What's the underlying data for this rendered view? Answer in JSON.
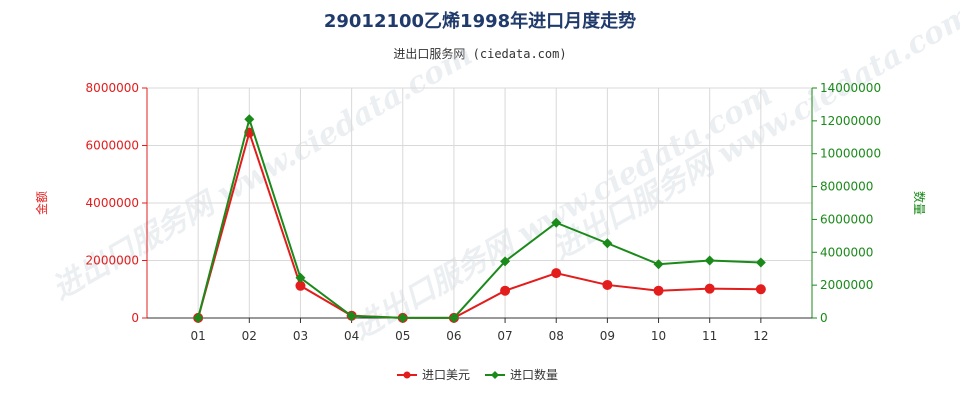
{
  "chart_data": {
    "type": "line",
    "title": "29012100乙烯1998年进口月度走势",
    "subtitle": "进出口服务网 (ciedata.com)",
    "categories": [
      "01",
      "02",
      "03",
      "04",
      "05",
      "06",
      "07",
      "08",
      "09",
      "10",
      "11",
      "12"
    ],
    "series": [
      {
        "name": "进口美元",
        "axis": "left",
        "color": "#e31c1c",
        "values": [
          5000,
          6450000,
          1120000,
          80000,
          5000,
          5000,
          950000,
          1560000,
          1150000,
          950000,
          1020000,
          1000000
        ]
      },
      {
        "name": "进口数量",
        "axis": "right",
        "color": "#1a8a1a",
        "values": [
          10000,
          12100000,
          2450000,
          120000,
          10000,
          10000,
          3450000,
          5800000,
          4550000,
          3270000,
          3500000,
          3380000
        ]
      }
    ],
    "ylabel_left": "金额",
    "ylabel_right": "数量",
    "ylim_left": [
      0,
      8000000
    ],
    "ylim_right": [
      0,
      14000000
    ],
    "yticks_left": [
      "0",
      "2000000",
      "4000000",
      "6000000",
      "8000000"
    ],
    "yticks_right": [
      "0",
      "2000000",
      "4000000",
      "6000000",
      "8000000",
      "10000000",
      "12000000",
      "14000000"
    ],
    "left_axis_color": "#e31c1c",
    "right_axis_color": "#1a8a1a",
    "grid": true,
    "legend_position": "bottom-center"
  }
}
